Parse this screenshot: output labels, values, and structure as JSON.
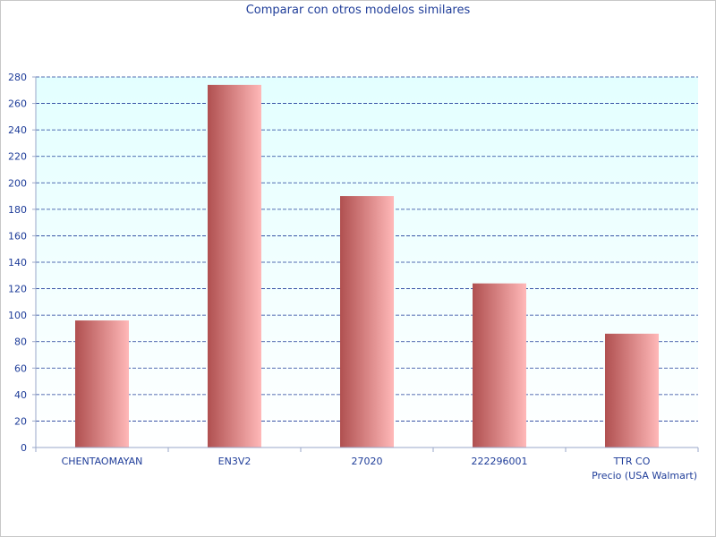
{
  "chart_data": {
    "type": "bar",
    "title": "Comparar con otros modelos similares",
    "xlabel": "Precio (USA Walmart)",
    "ylabel": "",
    "categories": [
      "CHENTAOMAYAN",
      "EN3V2",
      "27020",
      "222296001",
      "TTR CO"
    ],
    "values": [
      96,
      274,
      190,
      124,
      86
    ],
    "ylim": [
      0,
      280
    ],
    "yticks": [
      0,
      20,
      40,
      60,
      80,
      100,
      120,
      140,
      160,
      180,
      200,
      220,
      240,
      260,
      280
    ],
    "grid": true,
    "colors": {
      "plot_bg_top": "#e3ffff",
      "plot_bg_bottom": "#ffffff",
      "bar_dark": "#b05050",
      "bar_light": "#ffb8b8",
      "grid": "#1f3d99",
      "text": "#1f3d99"
    }
  }
}
